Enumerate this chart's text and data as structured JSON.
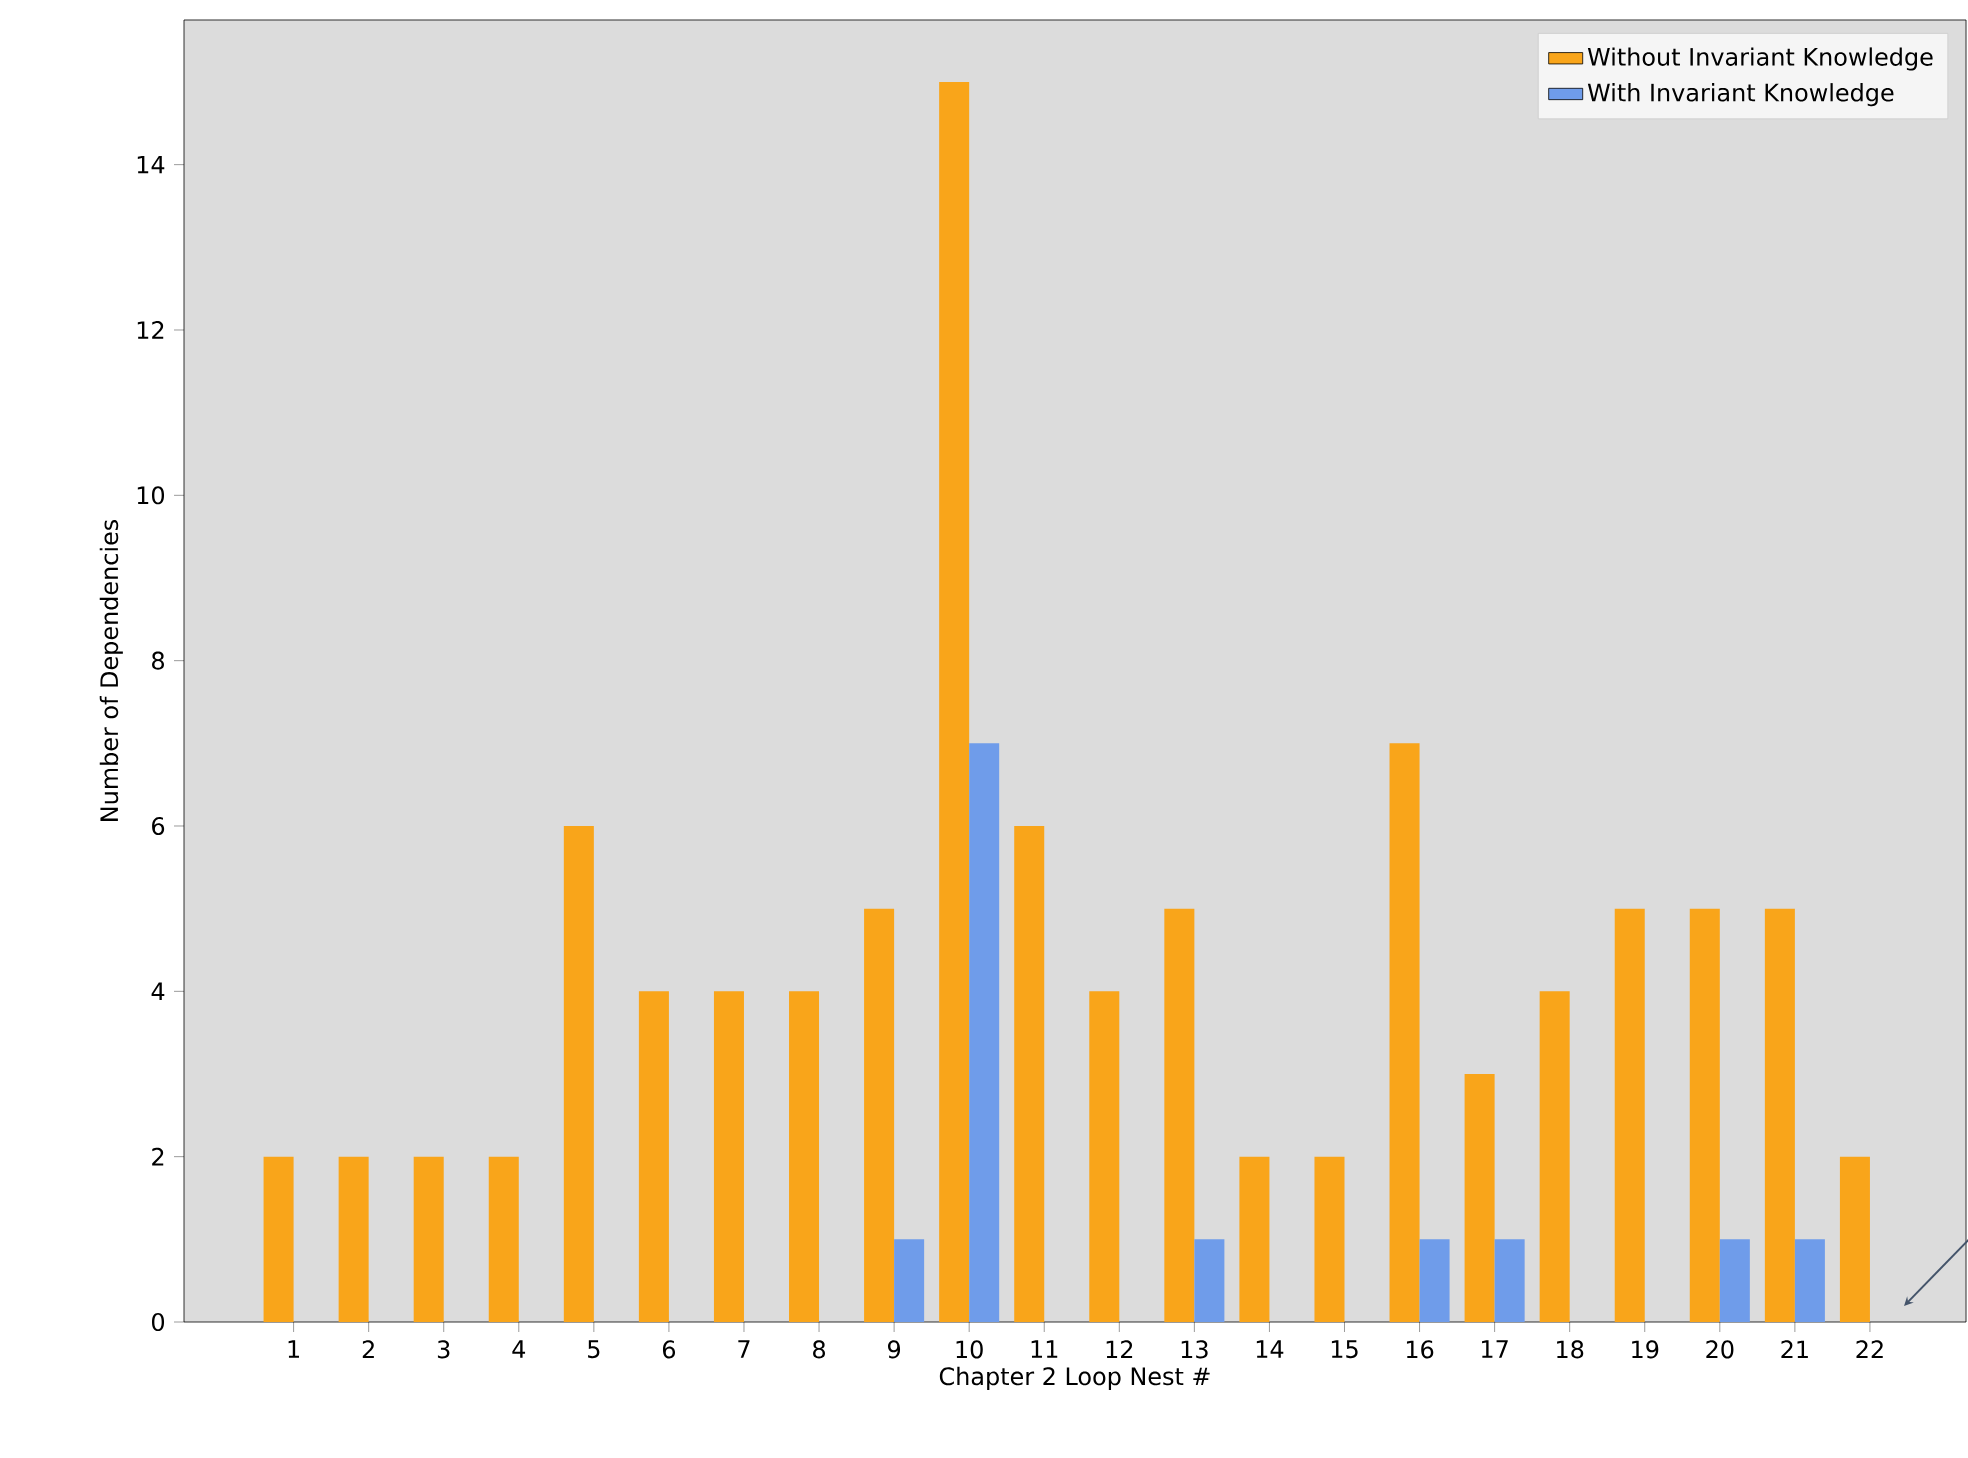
{
  "chart_data": {
    "type": "bar",
    "xlabel": "Chapter 2 Loop Nest #",
    "ylabel": "Number of Dependencies",
    "categories": [
      "1",
      "2",
      "3",
      "4",
      "5",
      "6",
      "7",
      "8",
      "9",
      "10",
      "11",
      "12",
      "13",
      "14",
      "15",
      "16",
      "17",
      "18",
      "19",
      "20",
      "21",
      "22"
    ],
    "series": [
      {
        "name": "Without Invariant Knowledge",
        "color": "#f9a51a",
        "values": [
          2,
          2,
          2,
          2,
          6,
          4,
          4,
          4,
          5,
          15,
          6,
          4,
          5,
          2,
          2,
          7,
          3,
          4,
          5,
          5,
          5,
          2
        ]
      },
      {
        "name": "With Invariant Knowledge",
        "color": "#6f9cea",
        "values": [
          0,
          0,
          0,
          0,
          0,
          0,
          0,
          0,
          1,
          7,
          0,
          0,
          1,
          0,
          0,
          1,
          1,
          0,
          0,
          1,
          1,
          0
        ]
      }
    ],
    "ylim": [
      0,
      15.75
    ],
    "yticks": [
      0,
      2,
      4,
      6,
      8,
      10,
      12,
      14
    ],
    "grid": false,
    "legend": "top right"
  }
}
